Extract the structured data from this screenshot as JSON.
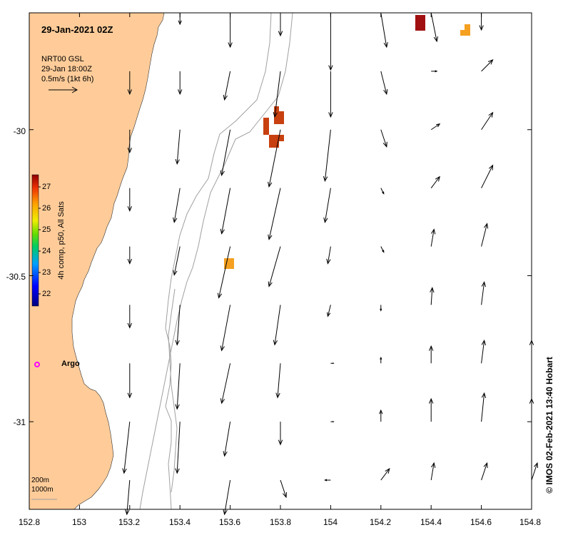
{
  "title": "29-Jan-2021 02Z",
  "product": {
    "line1": "NRT00 GSL",
    "line2": "29-Jan 18:00Z",
    "line3": "0.5m/s (1kt 6h)"
  },
  "argo_label": "Argo",
  "depth_legend": {
    "line1": "200m",
    "line2": "1000m"
  },
  "colorbar": {
    "title": "4h comp, p50, All Sats",
    "ticks": [
      "27",
      "26",
      "25",
      "24",
      "23",
      "22"
    ]
  },
  "credit": "© IMOS 02-Feb-2021 13:40 Hobart",
  "axes": {
    "x_ticks": [
      "152.8",
      "153",
      "153.2",
      "153.4",
      "153.6",
      "153.8",
      "154",
      "154.2",
      "154.4",
      "154.6",
      "154.8"
    ],
    "y_ticks": [
      "-30",
      "-30.5",
      "-31"
    ],
    "x_range": [
      152.8,
      154.8
    ],
    "y_range": [
      -31.3,
      -29.6
    ]
  },
  "colors": {
    "land": "#FFCC99",
    "sst_27": "#A01010",
    "sst_26_8": "#C84010",
    "sst_26": "#F5A020",
    "argo": "#FF00FF",
    "isobath": "#A0A0A0"
  },
  "current_vectors": [
    {
      "lon": 153.4,
      "lat": -29.6,
      "u": 0.0,
      "v": -0.2
    },
    {
      "lon": 153.6,
      "lat": -29.6,
      "u": 0.0,
      "v": -0.6
    },
    {
      "lon": 153.8,
      "lat": -29.6,
      "u": 0.0,
      "v": -0.4
    },
    {
      "lon": 154.0,
      "lat": -29.6,
      "u": 0.0,
      "v": -1.0
    },
    {
      "lon": 154.2,
      "lat": -29.6,
      "u": 0.1,
      "v": -0.6
    },
    {
      "lon": 154.4,
      "lat": -29.6,
      "u": 0.1,
      "v": -0.5
    },
    {
      "lon": 154.6,
      "lat": -29.6,
      "u": 0.0,
      "v": -0.3
    },
    {
      "lon": 153.2,
      "lat": -29.8,
      "u": 0.0,
      "v": -0.4
    },
    {
      "lon": 153.4,
      "lat": -29.8,
      "u": 0.0,
      "v": -0.4
    },
    {
      "lon": 153.6,
      "lat": -29.8,
      "u": -0.1,
      "v": -0.5
    },
    {
      "lon": 153.8,
      "lat": -29.8,
      "u": -0.1,
      "v": -0.8
    },
    {
      "lon": 154.0,
      "lat": -29.8,
      "u": 0.0,
      "v": -0.8
    },
    {
      "lon": 154.2,
      "lat": -29.8,
      "u": 0.1,
      "v": -0.4
    },
    {
      "lon": 154.4,
      "lat": -29.8,
      "u": 0.1,
      "v": 0.0
    },
    {
      "lon": 154.6,
      "lat": -29.8,
      "u": 0.2,
      "v": 0.2
    },
    {
      "lon": 153.2,
      "lat": -30.0,
      "u": 0.0,
      "v": -0.4
    },
    {
      "lon": 153.4,
      "lat": -30.0,
      "u": -0.05,
      "v": -0.6
    },
    {
      "lon": 153.6,
      "lat": -30.0,
      "u": -0.15,
      "v": -0.8
    },
    {
      "lon": 153.8,
      "lat": -30.0,
      "u": -0.2,
      "v": -1.0
    },
    {
      "lon": 154.0,
      "lat": -30.0,
      "u": -0.1,
      "v": -0.9
    },
    {
      "lon": 154.2,
      "lat": -30.0,
      "u": 0.1,
      "v": -0.3
    },
    {
      "lon": 154.4,
      "lat": -30.0,
      "u": 0.15,
      "v": 0.1
    },
    {
      "lon": 154.6,
      "lat": -30.0,
      "u": 0.2,
      "v": 0.3
    },
    {
      "lon": 153.2,
      "lat": -30.2,
      "u": 0.0,
      "v": -0.4
    },
    {
      "lon": 153.4,
      "lat": -30.2,
      "u": -0.1,
      "v": -0.6
    },
    {
      "lon": 153.6,
      "lat": -30.2,
      "u": -0.15,
      "v": -0.8
    },
    {
      "lon": 153.8,
      "lat": -30.2,
      "u": -0.2,
      "v": -0.9
    },
    {
      "lon": 154.0,
      "lat": -30.2,
      "u": -0.1,
      "v": -0.6
    },
    {
      "lon": 154.2,
      "lat": -30.2,
      "u": 0.05,
      "v": -0.1
    },
    {
      "lon": 154.4,
      "lat": -30.2,
      "u": 0.15,
      "v": 0.2
    },
    {
      "lon": 154.6,
      "lat": -30.2,
      "u": 0.2,
      "v": 0.4
    },
    {
      "lon": 153.2,
      "lat": -30.4,
      "u": 0.0,
      "v": -0.3
    },
    {
      "lon": 153.4,
      "lat": -30.4,
      "u": -0.1,
      "v": -0.5
    },
    {
      "lon": 153.6,
      "lat": -30.4,
      "u": -0.2,
      "v": -0.9
    },
    {
      "lon": 153.8,
      "lat": -30.4,
      "u": -0.2,
      "v": -0.7
    },
    {
      "lon": 154.0,
      "lat": -30.4,
      "u": -0.05,
      "v": -0.3
    },
    {
      "lon": 154.2,
      "lat": -30.4,
      "u": 0.05,
      "v": -0.1
    },
    {
      "lon": 154.4,
      "lat": -30.4,
      "u": 0.05,
      "v": 0.3
    },
    {
      "lon": 154.6,
      "lat": -30.4,
      "u": 0.1,
      "v": 0.4
    },
    {
      "lon": 153.2,
      "lat": -30.6,
      "u": 0.0,
      "v": -0.4
    },
    {
      "lon": 153.4,
      "lat": -30.6,
      "u": -0.05,
      "v": -0.7
    },
    {
      "lon": 153.6,
      "lat": -30.6,
      "u": -0.15,
      "v": -0.8
    },
    {
      "lon": 153.8,
      "lat": -30.6,
      "u": -0.1,
      "v": -0.7
    },
    {
      "lon": 154.0,
      "lat": -30.6,
      "u": -0.05,
      "v": -0.2
    },
    {
      "lon": 154.2,
      "lat": -30.6,
      "u": 0.0,
      "v": -0.1
    },
    {
      "lon": 154.4,
      "lat": -30.6,
      "u": 0.02,
      "v": 0.3
    },
    {
      "lon": 154.6,
      "lat": -30.6,
      "u": 0.05,
      "v": 0.4
    },
    {
      "lon": 153.2,
      "lat": -30.8,
      "u": 0.0,
      "v": -0.6
    },
    {
      "lon": 153.4,
      "lat": -30.8,
      "u": -0.05,
      "v": -0.8
    },
    {
      "lon": 153.6,
      "lat": -30.8,
      "u": -0.15,
      "v": -0.7
    },
    {
      "lon": 153.8,
      "lat": -30.8,
      "u": -0.05,
      "v": -0.6
    },
    {
      "lon": 154.0,
      "lat": -30.8,
      "u": 0.05,
      "v": -0.0
    },
    {
      "lon": 154.2,
      "lat": -30.8,
      "u": 0.0,
      "v": 0.1
    },
    {
      "lon": 154.4,
      "lat": -30.8,
      "u": 0.0,
      "v": 0.3
    },
    {
      "lon": 154.6,
      "lat": -30.8,
      "u": 0.05,
      "v": 0.4
    },
    {
      "lon": 154.8,
      "lat": -30.8,
      "u": 0.0,
      "v": 0.4
    },
    {
      "lon": 153.2,
      "lat": -31.0,
      "u": -0.1,
      "v": -0.9
    },
    {
      "lon": 153.4,
      "lat": -31.0,
      "u": -0.05,
      "v": -0.9
    },
    {
      "lon": 153.6,
      "lat": -31.0,
      "u": -0.1,
      "v": -0.6
    },
    {
      "lon": 153.8,
      "lat": -31.0,
      "u": 0.0,
      "v": -0.4
    },
    {
      "lon": 154.0,
      "lat": -31.0,
      "u": 0.05,
      "v": 0.0
    },
    {
      "lon": 154.2,
      "lat": -31.0,
      "u": 0.0,
      "v": 0.2
    },
    {
      "lon": 154.4,
      "lat": -31.0,
      "u": 0.0,
      "v": 0.4
    },
    {
      "lon": 154.6,
      "lat": -31.0,
      "u": 0.05,
      "v": 0.5
    },
    {
      "lon": 154.8,
      "lat": -31.0,
      "u": 0.0,
      "v": 0.4
    },
    {
      "lon": 153.2,
      "lat": -31.2,
      "u": -0.05,
      "v": -0.6
    },
    {
      "lon": 153.6,
      "lat": -31.2,
      "u": -0.1,
      "v": -0.6
    },
    {
      "lon": 153.8,
      "lat": -31.2,
      "u": 0.1,
      "v": -0.3
    },
    {
      "lon": 154.0,
      "lat": -31.2,
      "u": -0.1,
      "v": 0.0
    },
    {
      "lon": 154.2,
      "lat": -31.2,
      "u": 0.15,
      "v": 0.2
    },
    {
      "lon": 154.4,
      "lat": -31.2,
      "u": 0.05,
      "v": 0.3
    },
    {
      "lon": 154.6,
      "lat": -31.2,
      "u": 0.1,
      "v": 0.3
    },
    {
      "lon": 154.8,
      "lat": -31.2,
      "u": 0.1,
      "v": 0.3
    }
  ]
}
